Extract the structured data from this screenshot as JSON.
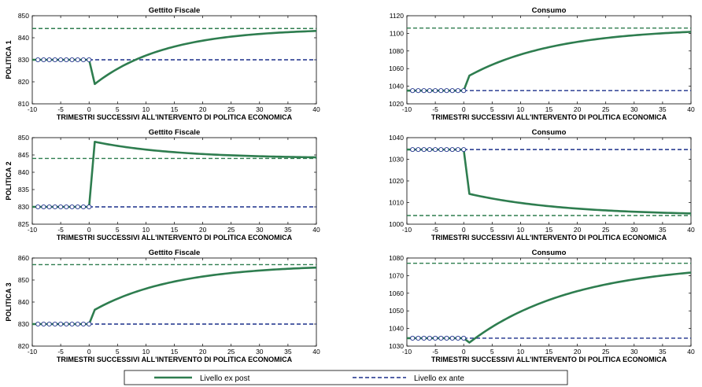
{
  "colors": {
    "ex_post": "#2e7d4f",
    "ex_ante_target": "#2e7d4f",
    "ex_ante_base": "#1a2f8a",
    "axis": "#000000"
  },
  "legend": {
    "ex_post_label": "Livello ex post",
    "ex_ante_label": "Livello ex ante"
  },
  "chart_data": [
    {
      "type": "line",
      "title": "Gettito Fiscale",
      "ylabel": "POLITICA 1",
      "xlabel": "TRIMESTRI SUCCESSIVI ALL'INTERVENTO DI POLITICA ECONOMICA",
      "xlim": [
        -10,
        40
      ],
      "ylim": [
        810,
        850
      ],
      "xticks": [
        -10,
        -5,
        0,
        5,
        10,
        15,
        20,
        25,
        30,
        35,
        40
      ],
      "yticks": [
        810,
        820,
        830,
        840,
        850
      ],
      "base": 830,
      "target": 844.2,
      "jump": 819,
      "rate": 0.08
    },
    {
      "type": "line",
      "title": "Consumo",
      "ylabel": "",
      "xlabel": "TRIMESTRI SUCCESSIVI ALL'INTERVENTO DI POLITICA ECONOMICA",
      "xlim": [
        -10,
        40
      ],
      "ylim": [
        1020,
        1120
      ],
      "xticks": [
        -10,
        -5,
        0,
        5,
        10,
        15,
        20,
        25,
        30,
        35,
        40
      ],
      "yticks": [
        1020,
        1040,
        1060,
        1080,
        1100,
        1120
      ],
      "base": 1035,
      "target": 1106,
      "jump": 1052,
      "rate": 0.065
    },
    {
      "type": "line",
      "title": "Gettito Fiscale",
      "ylabel": "POLITICA 2",
      "xlabel": "TRIMESTRI SUCCESSIVI ALL'INTERVENTO DI POLITICA ECONOMICA",
      "xlim": [
        -10,
        40
      ],
      "ylim": [
        825,
        850
      ],
      "xticks": [
        -10,
        -5,
        0,
        5,
        10,
        15,
        20,
        25,
        30,
        35,
        40
      ],
      "yticks": [
        825,
        830,
        835,
        840,
        845,
        850
      ],
      "base": 830,
      "target": 844,
      "jump": 848.8,
      "rate": 0.07
    },
    {
      "type": "line",
      "title": "Consumo",
      "ylabel": "",
      "xlabel": "TRIMESTRI SUCCESSIVI ALL'INTERVENTO DI POLITICA ECONOMICA",
      "xlim": [
        -10,
        40
      ],
      "ylim": [
        1000,
        1040
      ],
      "xticks": [
        -10,
        -5,
        0,
        5,
        10,
        15,
        20,
        25,
        30,
        35,
        40
      ],
      "yticks": [
        1000,
        1010,
        1020,
        1030,
        1040
      ],
      "base": 1034.5,
      "target": 1004,
      "jump": 1014,
      "rate": 0.06
    },
    {
      "type": "line",
      "title": "Gettito Fiscale",
      "ylabel": "POLITICA 3",
      "xlabel": "TRIMESTRI SUCCESSIVI ALL'INTERVENTO DI POLITICA ECONOMICA",
      "xlim": [
        -10,
        40
      ],
      "ylim": [
        820,
        860
      ],
      "xticks": [
        -10,
        -5,
        0,
        5,
        10,
        15,
        20,
        25,
        30,
        35,
        40
      ],
      "yticks": [
        820,
        830,
        840,
        850,
        860
      ],
      "base": 830,
      "target": 857,
      "jump": 836.5,
      "rate": 0.07
    },
    {
      "type": "line",
      "title": "Consumo",
      "ylabel": "",
      "xlabel": "TRIMESTRI SUCCESSIVI ALL'INTERVENTO DI POLITICA ECONOMICA",
      "xlim": [
        -10,
        40
      ],
      "ylim": [
        1030,
        1080
      ],
      "xticks": [
        -10,
        -5,
        0,
        5,
        10,
        15,
        20,
        25,
        30,
        35,
        40
      ],
      "yticks": [
        1030,
        1040,
        1050,
        1060,
        1070,
        1080
      ],
      "base": 1034.5,
      "target": 1077,
      "jump": 1032,
      "rate": 0.055
    }
  ]
}
